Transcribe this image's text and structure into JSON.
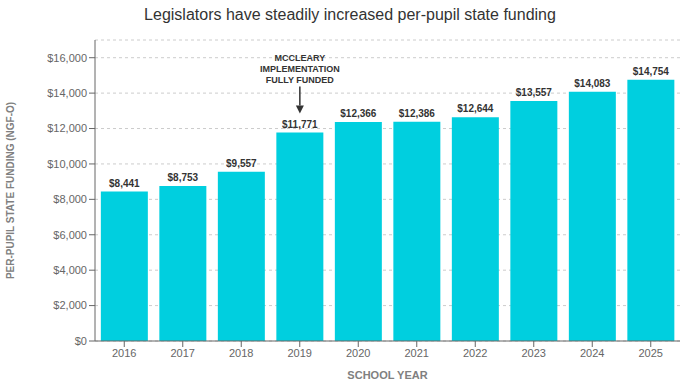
{
  "chart_data": {
    "type": "bar",
    "title": "Legislators have steadily increased per-pupil state funding",
    "xlabel": "SCHOOL YEAR",
    "ylabel": "PER-PUPIL STATE FUNDING (NGF-O)",
    "categories": [
      "2016",
      "2017",
      "2018",
      "2019",
      "2020",
      "2021",
      "2022",
      "2023",
      "2024",
      "2025"
    ],
    "values": [
      8441,
      8753,
      9557,
      11771,
      12366,
      12386,
      12644,
      13557,
      14083,
      14754
    ],
    "value_labels": [
      "$8,441",
      "$8,753",
      "$9,557",
      "$11,771",
      "$12,366",
      "$12,386",
      "$12,644",
      "$13,557",
      "$14,083",
      "$14,754"
    ],
    "data_labels": true,
    "color": "#00CFDF",
    "ylim": [
      0,
      17000
    ],
    "yticks": [
      {
        "value": 0,
        "label": "$0"
      },
      {
        "value": 2000,
        "label": "$2,000"
      },
      {
        "value": 4000,
        "label": "$4,000"
      },
      {
        "value": 6000,
        "label": "$6,000"
      },
      {
        "value": 8000,
        "label": "$8,000"
      },
      {
        "value": 10000,
        "label": "$10,000"
      },
      {
        "value": 12000,
        "label": "$12,000"
      },
      {
        "value": 14000,
        "label": "$14,000"
      },
      {
        "value": 16000,
        "label": "$16,000"
      }
    ],
    "grid": true,
    "annotations": [
      {
        "text": "MCCLEARY\nIMPLEMENTATION\nFULLY FUNDED",
        "category": "2019"
      }
    ]
  }
}
